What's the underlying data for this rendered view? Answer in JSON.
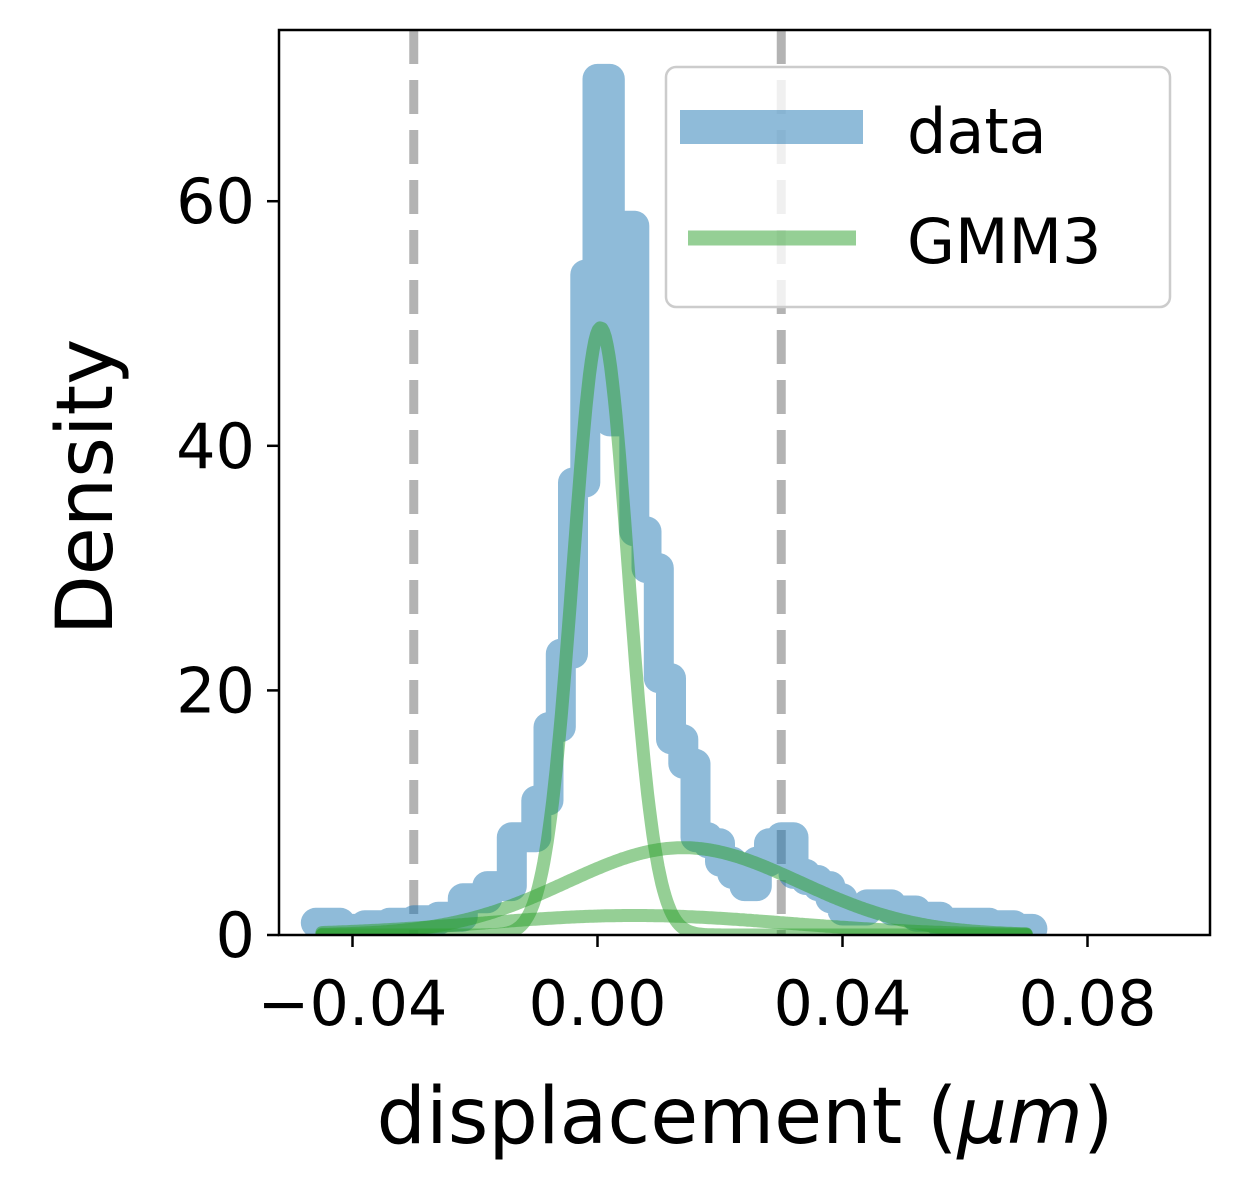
{
  "chart_data": {
    "type": "line",
    "xlabel": "displacement (μm)",
    "xlabel_parts": {
      "prefix": "displacement (",
      "unit": "μm",
      "suffix": ")"
    },
    "ylabel": "Density",
    "xlim": [
      -0.052,
      0.1
    ],
    "ylim": [
      0,
      74
    ],
    "xticks": [
      -0.04,
      0.0,
      0.04,
      0.08
    ],
    "xtick_labels": [
      "−0.04",
      "0.00",
      "0.04",
      "0.08"
    ],
    "yticks": [
      0,
      20,
      40,
      60
    ],
    "ytick_labels": [
      "0",
      "20",
      "40",
      "60"
    ],
    "vlines": [
      -0.03,
      0.03
    ],
    "vline_color": "#999999",
    "legend": {
      "position": "top-right",
      "entries": [
        "data",
        "GMM3"
      ]
    },
    "series": [
      {
        "name": "data",
        "kind": "histogram-step",
        "color": "#1f77b4",
        "bin_edges": [
          -0.046,
          -0.042,
          -0.038,
          -0.034,
          -0.03,
          -0.026,
          -0.022,
          -0.018,
          -0.014,
          -0.01,
          -0.008,
          -0.006,
          -0.004,
          -0.002,
          0.0,
          0.002,
          0.004,
          0.006,
          0.008,
          0.01,
          0.012,
          0.014,
          0.016,
          0.018,
          0.02,
          0.022,
          0.024,
          0.026,
          0.028,
          0.03,
          0.032,
          0.034,
          0.036,
          0.038,
          0.04,
          0.044,
          0.048,
          0.052,
          0.056,
          0.06,
          0.064,
          0.068,
          0.071
        ],
        "values": [
          1.0,
          0.5,
          0.8,
          1.0,
          1.2,
          1.5,
          3.0,
          4.0,
          8.0,
          11.0,
          17.0,
          23.0,
          37.0,
          54.0,
          70.0,
          42.0,
          58.0,
          33.0,
          30.0,
          21.0,
          16.0,
          14.0,
          8.0,
          7.5,
          6.0,
          5.0,
          4.0,
          6.0,
          7.5,
          8.0,
          5.0,
          4.5,
          4.0,
          3.0,
          2.0,
          2.5,
          2.0,
          1.5,
          1.0,
          1.0,
          0.8,
          0.5
        ]
      },
      {
        "name": "GMM3",
        "kind": "gaussian-components",
        "color": "#2ca02c",
        "components": [
          {
            "weight": 0.56,
            "mean": 0.0005,
            "std": 0.0045
          },
          {
            "weight": 0.34,
            "mean": 0.014,
            "std": 0.019
          },
          {
            "weight": 0.1,
            "mean": 0.006,
            "std": 0.025
          }
        ],
        "x_range": [
          -0.045,
          0.07
        ]
      }
    ]
  }
}
